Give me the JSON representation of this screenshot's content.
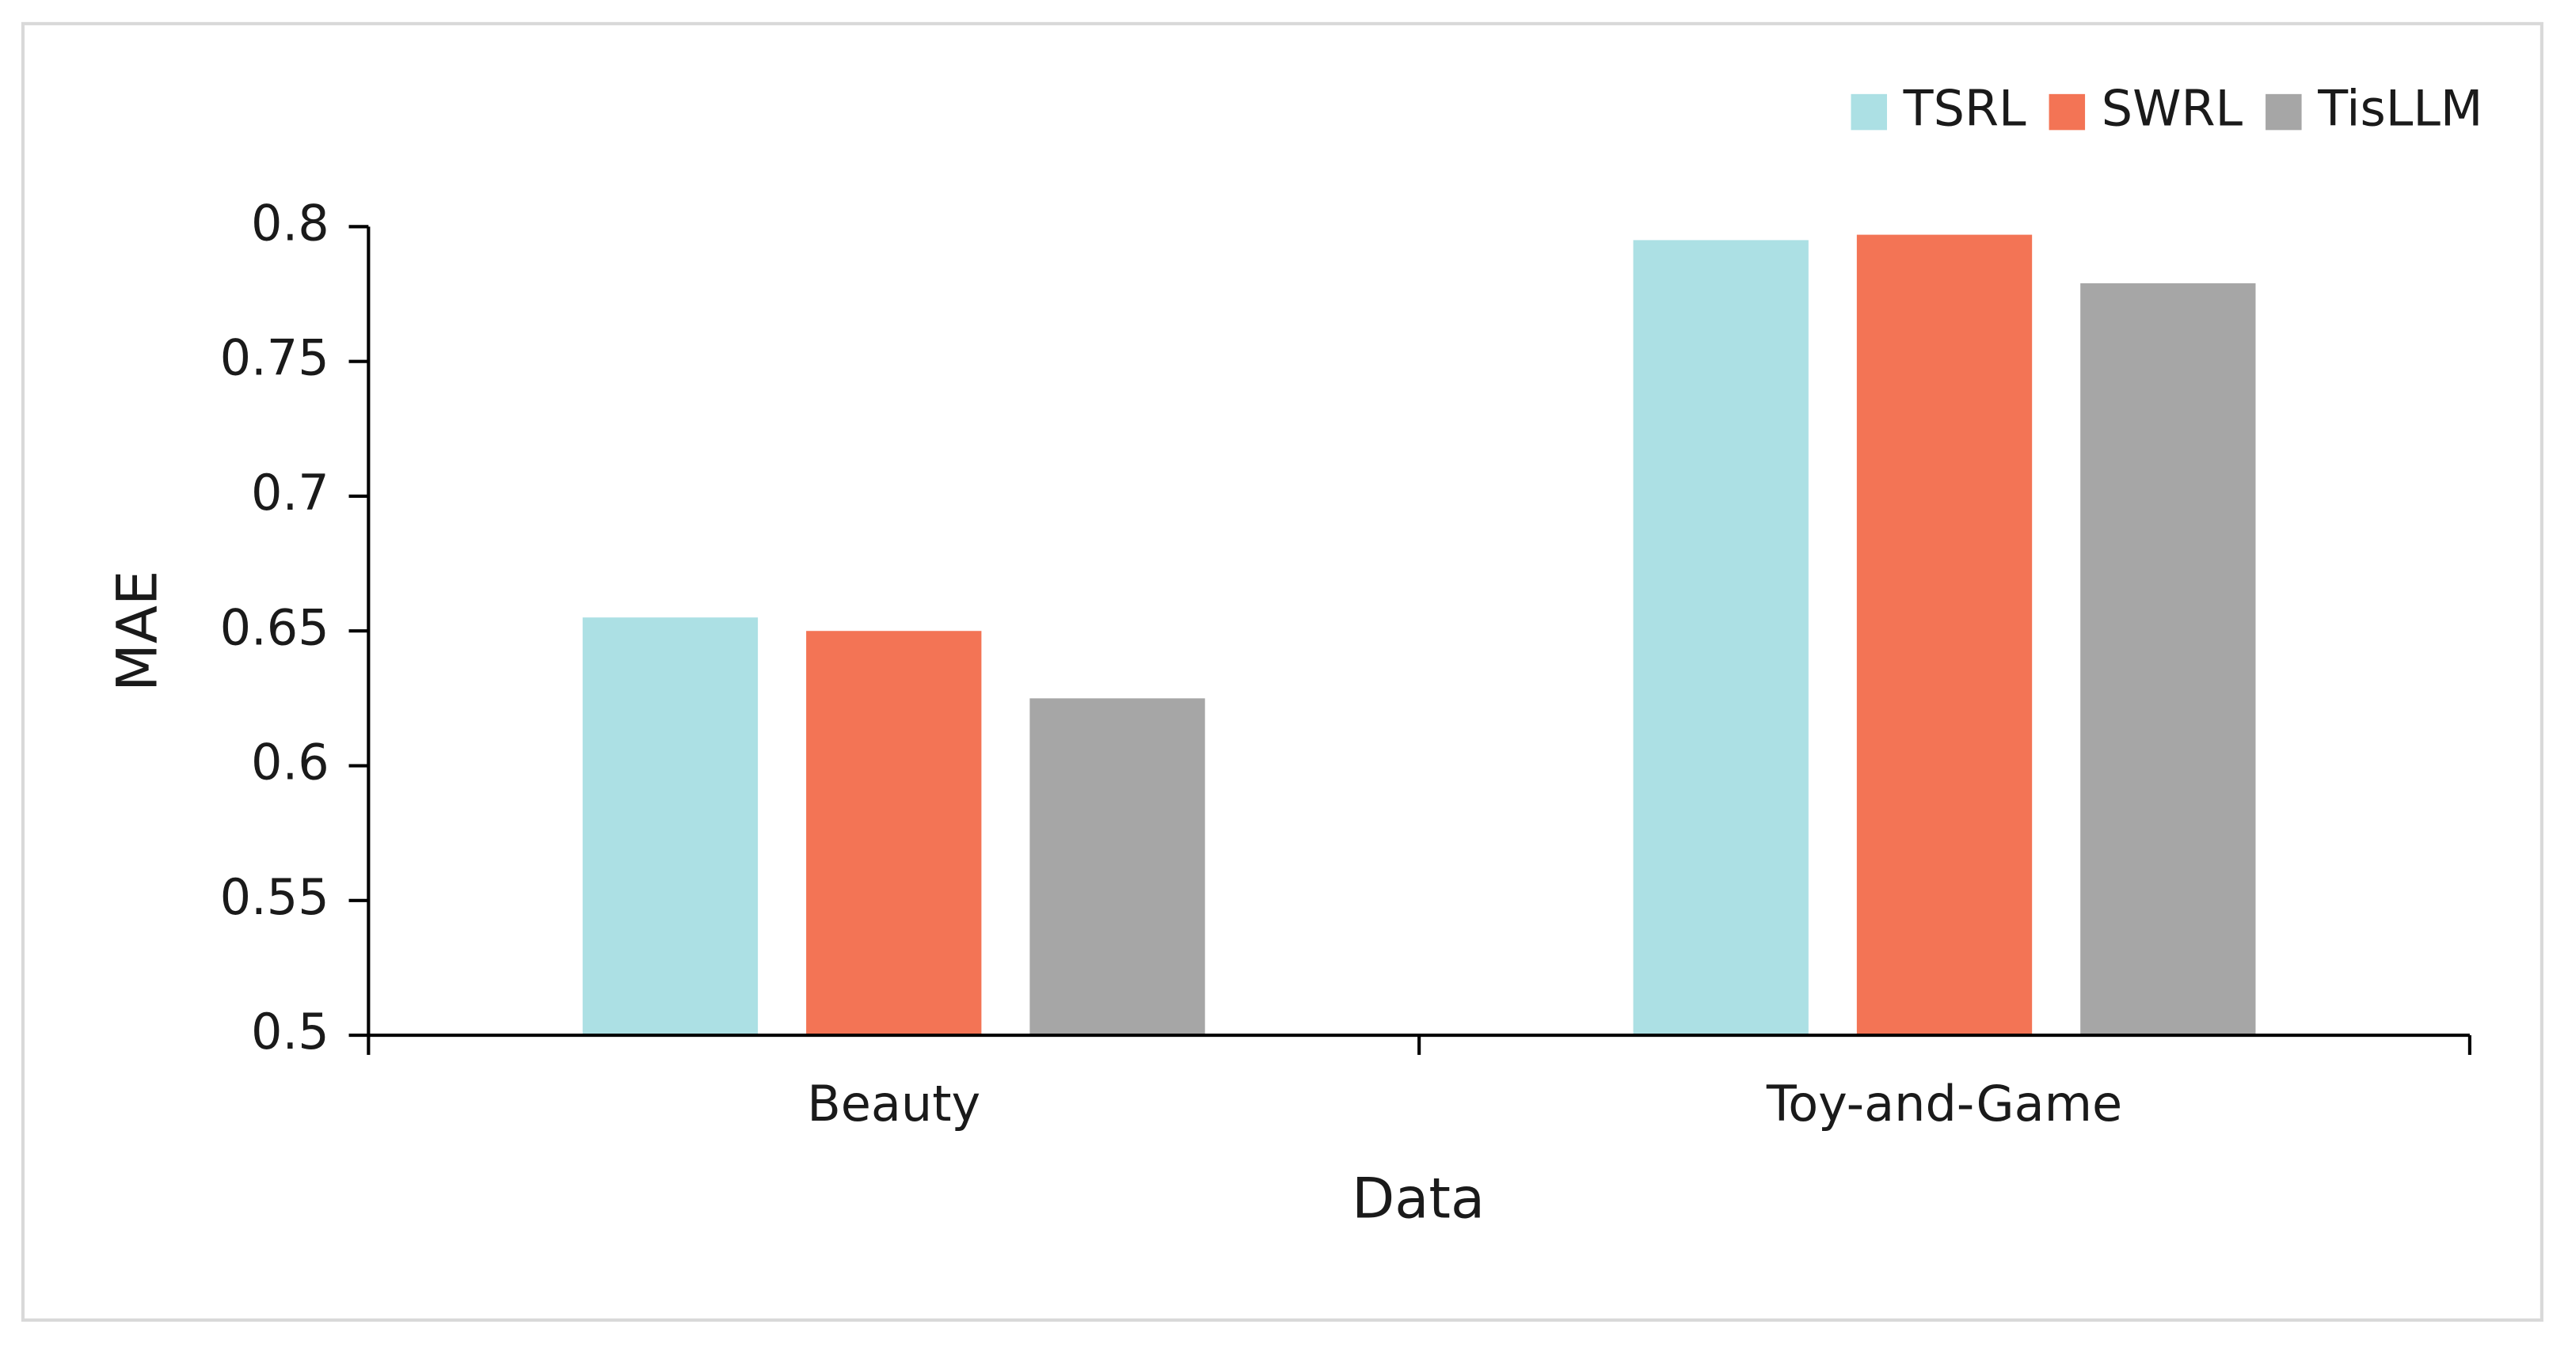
{
  "chart_data": {
    "type": "bar",
    "x_label": "Data",
    "y_label": "MAE",
    "categories": [
      "Beauty",
      "Toy-and-Game"
    ],
    "series": [
      {
        "name": "TSRL",
        "color": "#ace0e4",
        "values": [
          0.655,
          0.795
        ]
      },
      {
        "name": "SWRL",
        "color": "#f37455",
        "values": [
          0.65,
          0.797
        ]
      },
      {
        "name": "TisLLM",
        "color": "#a6a6a6",
        "values": [
          0.625,
          0.779
        ]
      }
    ],
    "ylim": [
      0.5,
      0.8
    ],
    "yticks": [
      0.5,
      0.55,
      0.6,
      0.65,
      0.7,
      0.75,
      0.8
    ],
    "grid": false,
    "legend": "top-right"
  }
}
